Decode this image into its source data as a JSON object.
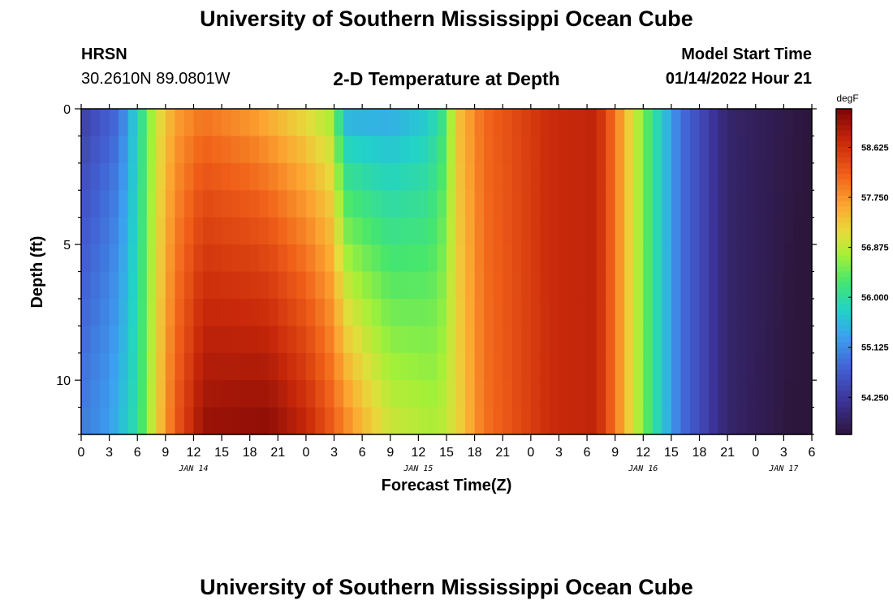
{
  "header": {
    "title": "University of Southern Mississippi Ocean Cube",
    "station": "HRSN",
    "coords": "30.2610N  89.0801W",
    "subtitle": "2-D Temperature at Depth",
    "start_label": "Model Start Time",
    "start_value": "01/14/2022 Hour 21"
  },
  "footer": {
    "title": "University of Southern Mississippi Ocean Cube"
  },
  "chart_data": {
    "type": "heatmap",
    "title": "2-D Temperature at Depth",
    "xlabel": "Forecast Time(Z)",
    "ylabel": "Depth (ft)",
    "xlim_hours": [
      0,
      78
    ],
    "ylim_ft": [
      0,
      12
    ],
    "x_tick_labels": [
      "0",
      "3",
      "6",
      "9",
      "12",
      "15",
      "18",
      "21",
      "0",
      "3",
      "6",
      "9",
      "12",
      "15",
      "18",
      "21",
      "0",
      "3",
      "6",
      "9",
      "12",
      "15",
      "18",
      "21",
      "0",
      "3",
      "6"
    ],
    "x_tick_hours": [
      0,
      3,
      6,
      9,
      12,
      15,
      18,
      21,
      24,
      27,
      30,
      33,
      36,
      39,
      42,
      45,
      48,
      51,
      54,
      57,
      60,
      63,
      66,
      69,
      72,
      75,
      78
    ],
    "date_labels": [
      {
        "label": "JAN 14",
        "hour": 12
      },
      {
        "label": "JAN 15",
        "hour": 36
      },
      {
        "label": "JAN 16",
        "hour": 60
      },
      {
        "label": "JAN 17",
        "hour": 75
      }
    ],
    "y_ticks": [
      0,
      5,
      10
    ],
    "colorbar": {
      "unit": "degF",
      "min": 53.6,
      "max": 59.3,
      "tick_labels": [
        "58.625",
        "57.750",
        "56.875",
        "56.000",
        "55.125",
        "54.250"
      ]
    },
    "depth_levels_ft": [
      0.5,
      1.5,
      2.5,
      3.5,
      4.5,
      5.5,
      6.5,
      7.5,
      8.5,
      9.5,
      10.5,
      11.5
    ],
    "time_columns": 78,
    "temperature_degF_profiles": {
      "surface": [
        [
          0,
          54.3
        ],
        [
          4,
          54.8
        ],
        [
          6,
          55.8
        ],
        [
          8,
          57.0
        ],
        [
          10,
          57.6
        ],
        [
          13,
          57.9
        ],
        [
          18,
          57.6
        ],
        [
          24,
          57.0
        ],
        [
          27,
          56.6
        ],
        [
          28,
          55.3
        ],
        [
          33,
          55.3
        ],
        [
          37,
          55.6
        ],
        [
          39,
          56.2
        ],
        [
          40,
          57.3
        ],
        [
          43,
          58.1
        ],
        [
          50,
          58.7
        ],
        [
          55,
          58.8
        ],
        [
          57,
          58.0
        ],
        [
          59,
          57.0
        ],
        [
          61,
          56.1
        ],
        [
          64,
          54.9
        ],
        [
          69,
          53.9
        ],
        [
          78,
          53.6
        ]
      ],
      "bottom": [
        [
          0,
          55.0
        ],
        [
          3,
          55.3
        ],
        [
          6,
          56.0
        ],
        [
          8,
          57.2
        ],
        [
          10,
          58.2
        ],
        [
          13,
          59.1
        ],
        [
          20,
          59.2
        ],
        [
          24,
          58.8
        ],
        [
          27,
          58.2
        ],
        [
          30,
          57.5
        ],
        [
          33,
          57.0
        ],
        [
          38,
          56.8
        ],
        [
          40,
          57.1
        ],
        [
          43,
          58.0
        ],
        [
          50,
          58.7
        ],
        [
          55,
          58.8
        ],
        [
          57,
          58.0
        ],
        [
          59,
          57.0
        ],
        [
          61,
          56.1
        ],
        [
          64,
          54.9
        ],
        [
          69,
          53.9
        ],
        [
          78,
          53.5
        ]
      ]
    }
  }
}
